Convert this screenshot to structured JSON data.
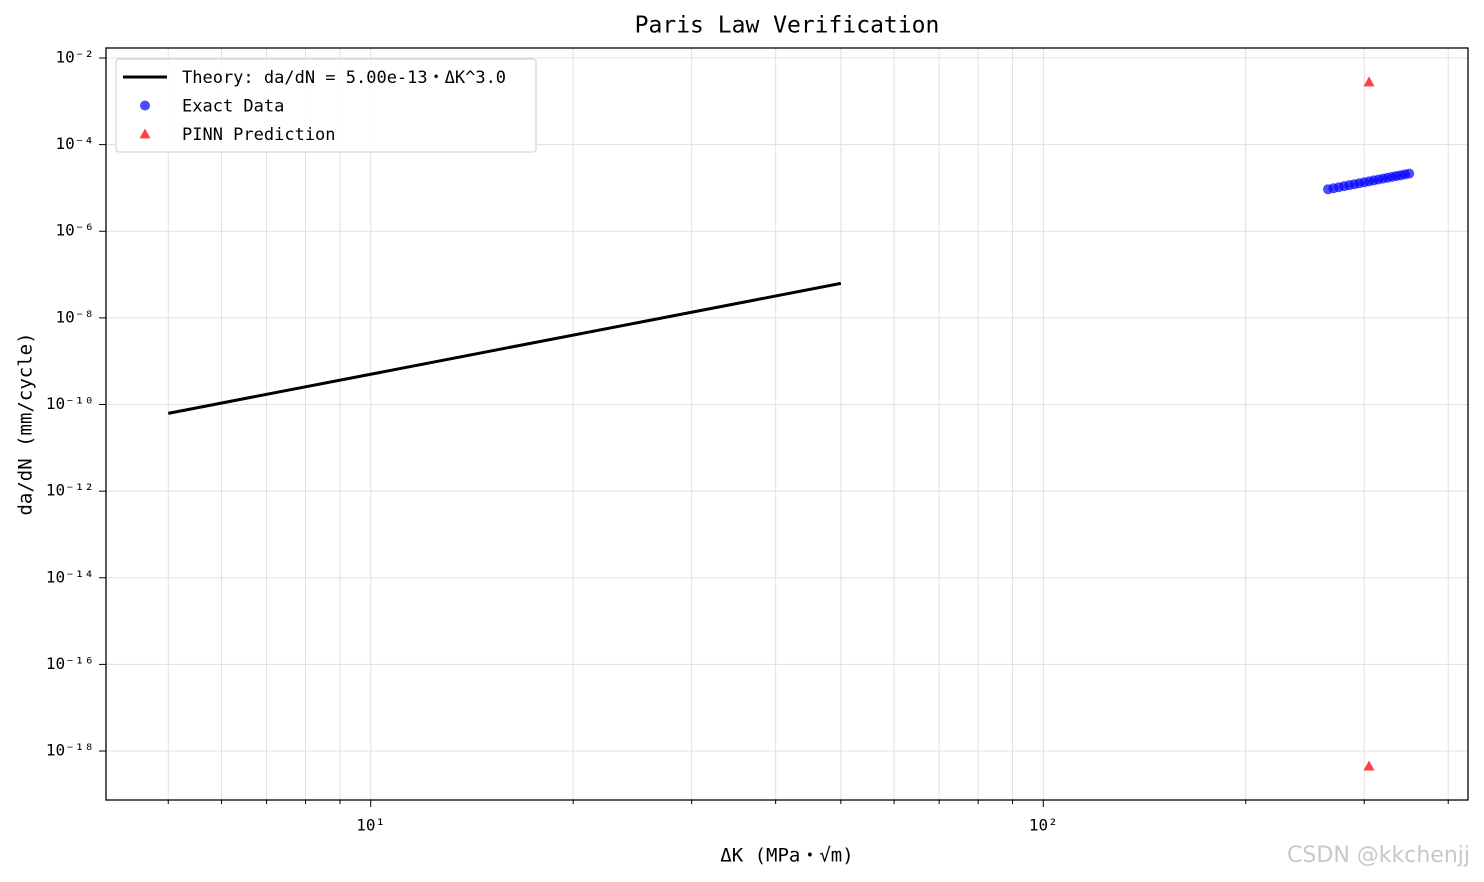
{
  "chart_data": {
    "type": "scatter",
    "title": "Paris Law Verification",
    "xlabel": "ΔK (MPa・√m)",
    "ylabel": "da/dN (mm/cycle)",
    "xscale": "log",
    "yscale": "log",
    "grid": true,
    "legend": "upper left",
    "xlim": [
      4.04,
      428
    ],
    "ylim": [
      7.4e-20,
      0.017
    ],
    "xticks": [
      {
        "value": 10,
        "label": "10¹"
      },
      {
        "value": 100,
        "label": "10²"
      }
    ],
    "xminorticks": [
      5,
      6,
      7,
      8,
      9,
      20,
      30,
      40,
      50,
      60,
      70,
      80,
      90,
      200,
      300,
      400
    ],
    "yticks": [
      {
        "value": 0.01,
        "label": "10⁻²"
      },
      {
        "value": 0.0001,
        "label": "10⁻⁴"
      },
      {
        "value": 1e-06,
        "label": "10⁻⁶"
      },
      {
        "value": 1e-08,
        "label": "10⁻⁸"
      },
      {
        "value": 1e-10,
        "label": "10⁻¹⁰"
      },
      {
        "value": 1e-12,
        "label": "10⁻¹²"
      },
      {
        "value": 1e-14,
        "label": "10⁻¹⁴"
      },
      {
        "value": 1e-16,
        "label": "10⁻¹⁶"
      },
      {
        "value": 1e-18,
        "label": "10⁻¹⁸"
      }
    ],
    "series": [
      {
        "name": "Theory: da/dN = 5.00e-13・ΔK^3.0",
        "mode": "line",
        "color": "#000000",
        "x": [
          5,
          50
        ],
        "values": [
          6.25e-11,
          6.25e-08
        ]
      },
      {
        "name": "Exact Data",
        "mode": "circle",
        "color": "#0000ff",
        "x": [
          265,
          270,
          275,
          280,
          285,
          290,
          295,
          300,
          305,
          310,
          315,
          320,
          325,
          330,
          335,
          340,
          345,
          350
        ],
        "values": [
          9.3e-06,
          9.84e-06,
          1.04e-05,
          1.098e-05,
          1.157e-05,
          1.219e-05,
          1.284e-05,
          1.35e-05,
          1.419e-05,
          1.49e-05,
          1.563e-05,
          1.638e-05,
          1.716e-05,
          1.797e-05,
          1.88e-05,
          1.965e-05,
          2.053e-05,
          2.144e-05
        ]
      },
      {
        "name": "PINN Prediction",
        "mode": "triangle",
        "color": "#ff0000",
        "x": [
          305,
          305
        ],
        "values": [
          0.0028,
          4.5e-19
        ]
      }
    ],
    "watermark": "CSDN @kkchenjj"
  }
}
